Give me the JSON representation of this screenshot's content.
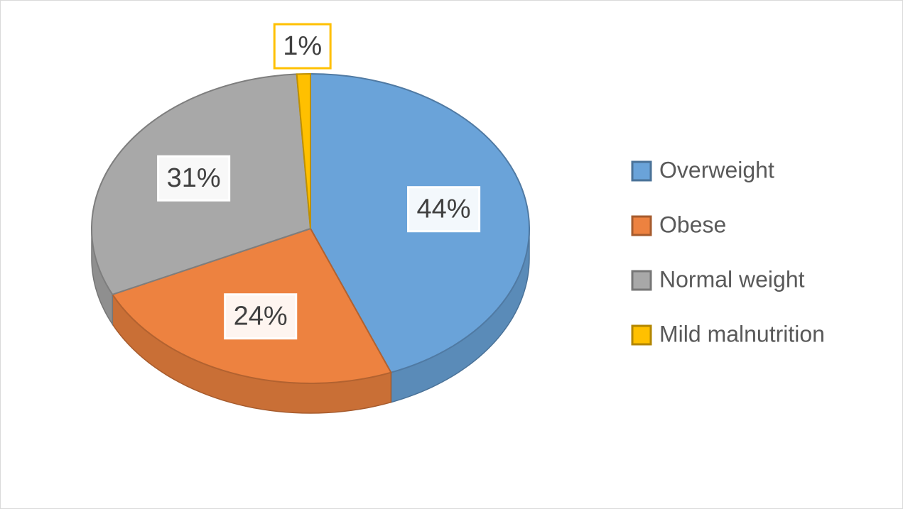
{
  "chart_data": {
    "type": "pie",
    "categories": [
      "Overweight",
      "Obese",
      "Normal weight",
      "Mild malnutrition"
    ],
    "values": [
      44,
      24,
      31,
      1
    ],
    "value_labels": [
      "44%",
      "24%",
      "31%",
      "1%"
    ],
    "colors": [
      "#6aa3d9",
      "#ed8240",
      "#a8a8a8",
      "#ffc000"
    ],
    "legend": "right"
  }
}
